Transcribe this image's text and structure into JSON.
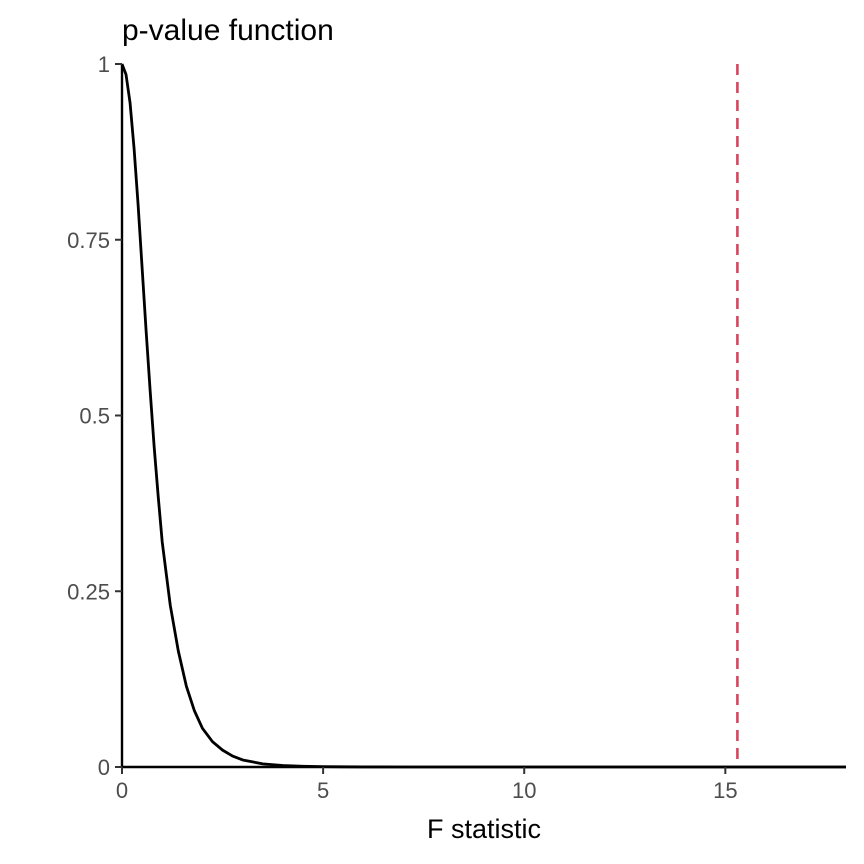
{
  "chart_data": {
    "type": "line",
    "title": "p-value function",
    "xlabel": "F statistic",
    "ylabel": "",
    "xlim": [
      0,
      18
    ],
    "ylim": [
      0,
      1
    ],
    "x_ticks": [
      0,
      5,
      10,
      15
    ],
    "x_tick_labels": [
      "0",
      "5",
      "10",
      "15"
    ],
    "y_ticks": [
      0,
      0.25,
      0.5,
      0.75,
      1
    ],
    "y_tick_labels": [
      "0",
      "0.25",
      "0.5",
      "0.75",
      "1"
    ],
    "grid": false,
    "legend": "none",
    "series": [
      {
        "color": "#000000",
        "x": [
          0,
          0.1,
          0.2,
          0.3,
          0.4,
          0.5,
          0.6,
          0.7,
          0.8,
          0.9,
          1.0,
          1.2,
          1.4,
          1.6,
          1.8,
          2.0,
          2.25,
          2.5,
          2.75,
          3.0,
          3.5,
          4.0,
          4.5,
          5.0,
          5.5,
          6.0,
          7.0,
          8.0,
          10.0,
          12.0,
          15.0,
          18.0
        ],
        "y": [
          1.0,
          0.985,
          0.945,
          0.88,
          0.8,
          0.71,
          0.62,
          0.535,
          0.455,
          0.385,
          0.32,
          0.23,
          0.165,
          0.115,
          0.08,
          0.055,
          0.036,
          0.024,
          0.0155,
          0.01,
          0.0045,
          0.0021,
          0.001,
          0.0005,
          0.00025,
          0.00012,
          3e-05,
          1e-05,
          0,
          0,
          0,
          0
        ]
      }
    ],
    "reference_line": {
      "orientation": "vertical",
      "x": 15.3,
      "color": "#d9455f",
      "style": "dashed"
    }
  }
}
